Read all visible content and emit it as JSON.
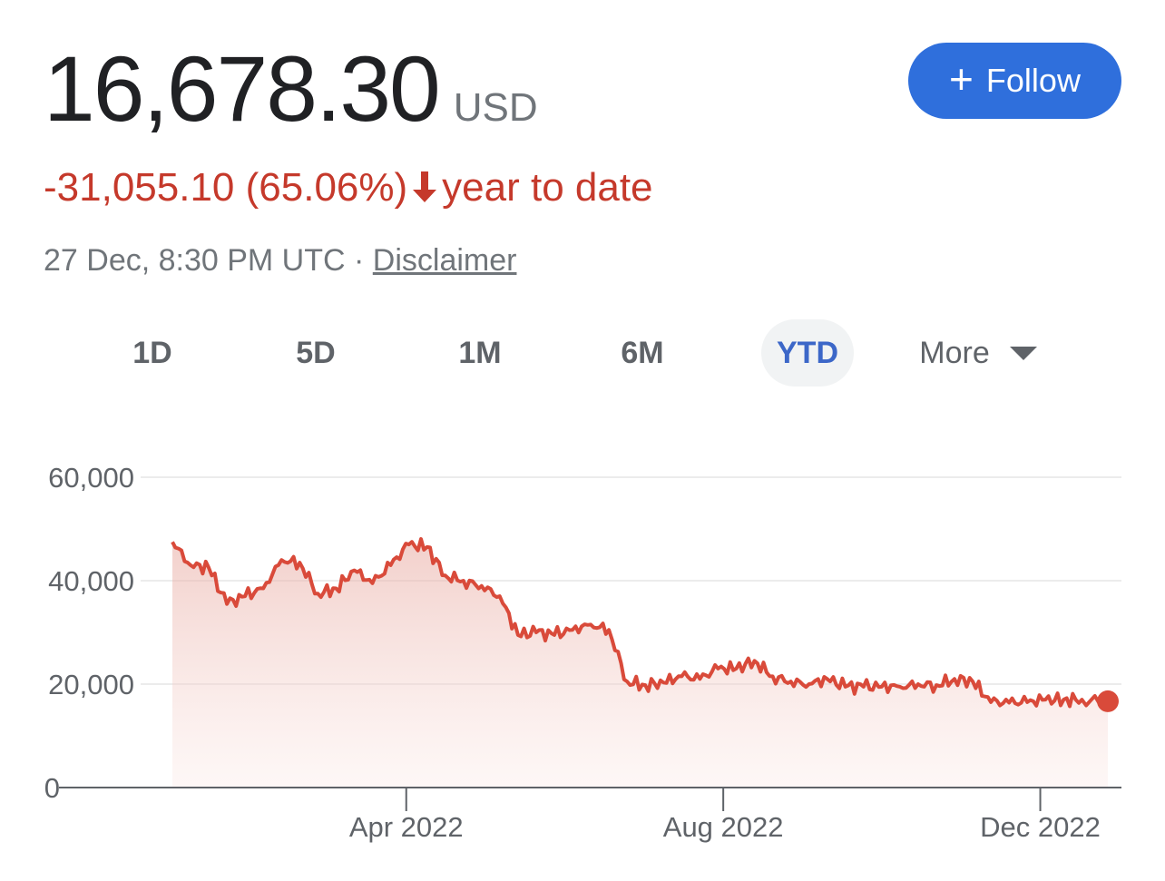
{
  "quote": {
    "price": "16,678.30",
    "currency": "USD",
    "change_text": "-31,055.10 (65.06%)",
    "period_text": "year to date",
    "timestamp": "27 Dec, 8:30 PM UTC · ",
    "disclaimer_label": "Disclaimer"
  },
  "follow_button": {
    "label": "Follow",
    "icon": "plus-icon"
  },
  "ranges": {
    "items": [
      "1D",
      "5D",
      "1M",
      "6M",
      "YTD"
    ],
    "active": "YTD",
    "more_label": "More"
  },
  "colors": {
    "accent": "#2f6fdc",
    "negative": "#c5392b",
    "line": "#d94a3a"
  },
  "chart_data": {
    "type": "area",
    "title": "",
    "xlabel": "",
    "ylabel": "",
    "ylim": [
      0,
      60000
    ],
    "yticks": [
      "60,000",
      "40,000",
      "20,000",
      "0"
    ],
    "xticks": [
      "Apr 2022",
      "Aug 2022",
      "Dec 2022"
    ],
    "grid": true,
    "series": [
      {
        "x": [
          "2022-01-01",
          "2022-01-08",
          "2022-01-15",
          "2022-01-22",
          "2022-01-29",
          "2022-02-05",
          "2022-02-12",
          "2022-02-19",
          "2022-02-26",
          "2022-03-05",
          "2022-03-12",
          "2022-03-19",
          "2022-03-26",
          "2022-04-02",
          "2022-04-09",
          "2022-04-16",
          "2022-04-23",
          "2022-04-30",
          "2022-05-07",
          "2022-05-14",
          "2022-05-21",
          "2022-05-28",
          "2022-06-04",
          "2022-06-11",
          "2022-06-18",
          "2022-06-25",
          "2022-07-02",
          "2022-07-09",
          "2022-07-16",
          "2022-07-23",
          "2022-07-30",
          "2022-08-06",
          "2022-08-13",
          "2022-08-20",
          "2022-08-27",
          "2022-09-03",
          "2022-09-10",
          "2022-09-17",
          "2022-09-24",
          "2022-10-01",
          "2022-10-08",
          "2022-10-15",
          "2022-10-22",
          "2022-10-29",
          "2022-11-05",
          "2022-11-12",
          "2022-11-19",
          "2022-11-26",
          "2022-12-03",
          "2022-12-10",
          "2022-12-17",
          "2022-12-27"
        ],
        "values": [
          47500,
          43000,
          42500,
          35500,
          37000,
          38500,
          44000,
          43500,
          37500,
          38500,
          42000,
          39500,
          43000,
          47000,
          46500,
          41000,
          40000,
          39000,
          37000,
          29500,
          30000,
          29500,
          30500,
          31500,
          30500,
          20500,
          19800,
          20300,
          21500,
          21000,
          23000,
          23000,
          24500,
          21500,
          20500,
          20000,
          21000,
          19500,
          19500,
          19500,
          19500,
          20000,
          19800,
          21000,
          20500,
          16500,
          16400,
          16500,
          17000,
          17000,
          17000,
          16678
        ]
      }
    ]
  }
}
